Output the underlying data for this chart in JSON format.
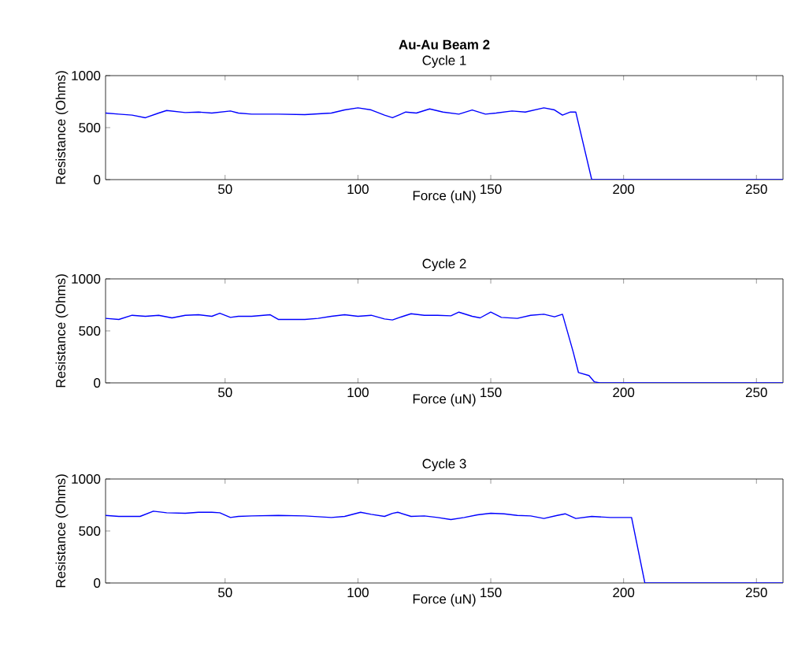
{
  "chart_data": [
    {
      "type": "line",
      "title": "Au-Au Beam 2",
      "subtitle": "Cycle 1",
      "xlabel": "Force (uN)",
      "ylabel": "Resistance (Ohms)",
      "xlim": [
        5,
        260
      ],
      "ylim": [
        0,
        1000
      ],
      "xticks": [
        50,
        100,
        150,
        200,
        250
      ],
      "yticks": [
        0,
        500,
        1000
      ],
      "x": [
        5,
        10,
        15,
        20,
        25,
        28,
        35,
        40,
        45,
        52,
        55,
        60,
        70,
        80,
        90,
        95,
        100,
        105,
        110,
        113,
        118,
        122,
        127,
        132,
        138,
        143,
        148,
        152,
        158,
        163,
        170,
        174,
        177,
        180,
        182,
        188,
        260
      ],
      "series": [
        {
          "color": "#0000ff",
          "values": [
            640,
            630,
            620,
            595,
            640,
            665,
            645,
            650,
            640,
            660,
            640,
            630,
            630,
            625,
            640,
            670,
            690,
            670,
            620,
            595,
            650,
            640,
            680,
            650,
            630,
            670,
            630,
            640,
            660,
            650,
            690,
            670,
            620,
            650,
            650,
            0,
            0
          ]
        }
      ]
    },
    {
      "type": "line",
      "title": "Cycle 2",
      "xlabel": "Force (uN)",
      "ylabel": "Resistance (Ohms)",
      "xlim": [
        5,
        260
      ],
      "ylim": [
        0,
        1000
      ],
      "xticks": [
        50,
        100,
        150,
        200,
        250
      ],
      "yticks": [
        0,
        500,
        1000
      ],
      "x": [
        5,
        10,
        15,
        20,
        25,
        30,
        35,
        40,
        45,
        48,
        52,
        55,
        60,
        67,
        70,
        80,
        85,
        90,
        95,
        100,
        105,
        110,
        113,
        117,
        120,
        125,
        130,
        135,
        138,
        143,
        146,
        150,
        154,
        160,
        165,
        170,
        174,
        177,
        179,
        181,
        183,
        187,
        189,
        191,
        260
      ],
      "series": [
        {
          "color": "#0000ff",
          "values": [
            620,
            610,
            650,
            640,
            650,
            625,
            650,
            655,
            640,
            670,
            630,
            640,
            640,
            655,
            610,
            610,
            620,
            640,
            655,
            640,
            650,
            615,
            605,
            640,
            665,
            650,
            650,
            645,
            680,
            640,
            625,
            680,
            630,
            620,
            650,
            660,
            635,
            660,
            480,
            300,
            100,
            70,
            10,
            0,
            0
          ]
        }
      ]
    },
    {
      "type": "line",
      "title": "Cycle 3",
      "xlabel": "Force (uN)",
      "ylabel": "Resistance (Ohms)",
      "xlim": [
        5,
        260
      ],
      "ylim": [
        0,
        1000
      ],
      "xticks": [
        50,
        100,
        150,
        200,
        250
      ],
      "yticks": [
        0,
        500,
        1000
      ],
      "x": [
        5,
        10,
        18,
        23,
        28,
        35,
        40,
        45,
        48,
        52,
        55,
        60,
        70,
        80,
        90,
        95,
        101,
        105,
        110,
        113,
        115,
        120,
        125,
        130,
        135,
        140,
        145,
        150,
        155,
        160,
        165,
        170,
        175,
        178,
        182,
        188,
        195,
        203,
        208,
        260
      ],
      "series": [
        {
          "color": "#0000ff",
          "values": [
            650,
            640,
            640,
            690,
            675,
            670,
            680,
            680,
            675,
            630,
            640,
            645,
            650,
            645,
            630,
            640,
            680,
            660,
            640,
            670,
            680,
            640,
            645,
            630,
            610,
            630,
            655,
            670,
            665,
            650,
            645,
            620,
            650,
            665,
            620,
            640,
            630,
            630,
            0,
            0
          ]
        }
      ]
    }
  ]
}
